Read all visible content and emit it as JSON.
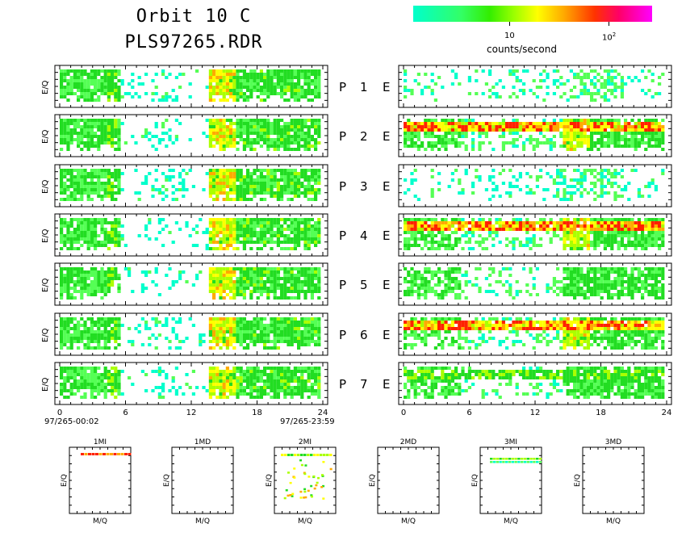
{
  "header": {
    "title_line1": "Orbit 10 C",
    "title_line2": "PLS97265.RDR"
  },
  "colorbar": {
    "tick1": "10",
    "tick2_base": "10",
    "tick2_exp": "2",
    "label": "counts/second",
    "colors": [
      "#00ffcc",
      "#33ff66",
      "#33ee00",
      "#99ff00",
      "#ffff00",
      "#ffaa00",
      "#ff3300",
      "#ff0066",
      "#ff00ff"
    ]
  },
  "labels": {
    "eq": "E/Q",
    "mq": "M/Q",
    "time_start": "97/265-00:02",
    "time_end": "97/265-23:59"
  },
  "chart_data": {
    "type": "heatmap",
    "x_label": "",
    "x_ticks": [
      "0",
      "6",
      "12",
      "18",
      "24"
    ],
    "xlim": [
      0,
      24
    ],
    "rows": [
      {
        "P": "P",
        "num": "1",
        "E": "E"
      },
      {
        "P": "P",
        "num": "2",
        "E": "E"
      },
      {
        "P": "P",
        "num": "3",
        "E": "E"
      },
      {
        "P": "P",
        "num": "4",
        "E": "E"
      },
      {
        "P": "P",
        "num": "5",
        "E": "E"
      },
      {
        "P": "P",
        "num": "6",
        "E": "E"
      },
      {
        "P": "P",
        "num": "7",
        "E": "E"
      }
    ],
    "mini_panels": [
      "1MI",
      "1MD",
      "2MI",
      "2MD",
      "3MI",
      "3MD"
    ],
    "colors": {
      "cyan": "#00ffcc",
      "lightgreen": "#55ff55",
      "green": "#22dd22",
      "yellowgreen": "#aaff00",
      "yellow": "#ffff00",
      "orange": "#ffaa00",
      "red": "#ff2200",
      "magenta": "#ff0066"
    }
  }
}
